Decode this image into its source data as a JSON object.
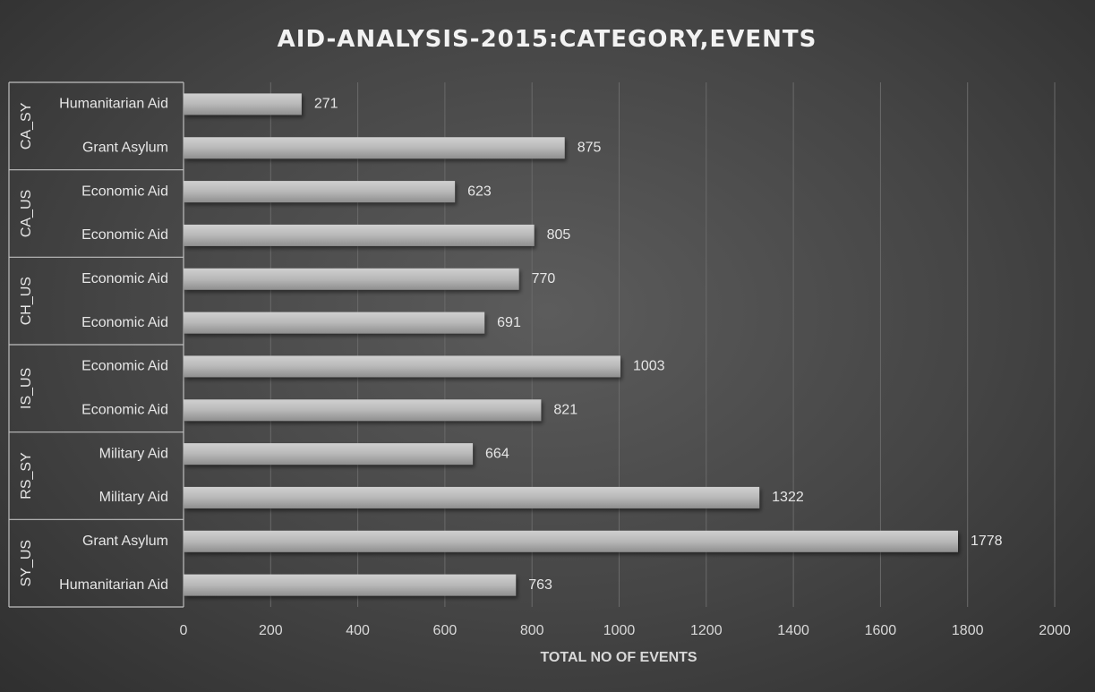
{
  "chart_data": {
    "type": "bar",
    "orientation": "horizontal",
    "title": "AID-ANALYSIS-2015:CATEGORY,EVENTS",
    "xlabel": "TOTAL NO OF EVENTS",
    "ylabel": "",
    "xlim": [
      0,
      2000
    ],
    "xticks": [
      0,
      200,
      400,
      600,
      800,
      1000,
      1200,
      1400,
      1600,
      1800,
      2000
    ],
    "grid": true,
    "legend": "none",
    "bar_color": "#b3b3b3",
    "groups": [
      {
        "name": "CA_SY",
        "items": [
          {
            "category": "Humanitarian Aid",
            "value": 271
          },
          {
            "category": "Grant Asylum",
            "value": 875
          }
        ]
      },
      {
        "name": "CA_US",
        "items": [
          {
            "category": "Economic Aid",
            "value": 623
          },
          {
            "category": "Economic Aid",
            "value": 805
          }
        ]
      },
      {
        "name": "CH_US",
        "items": [
          {
            "category": "Economic Aid",
            "value": 770
          },
          {
            "category": "Economic Aid",
            "value": 691
          }
        ]
      },
      {
        "name": "IS_US",
        "items": [
          {
            "category": "Economic Aid",
            "value": 1003
          },
          {
            "category": "Economic Aid",
            "value": 821
          }
        ]
      },
      {
        "name": "RS_SY",
        "items": [
          {
            "category": "Military Aid",
            "value": 664
          },
          {
            "category": "Military Aid",
            "value": 1322
          }
        ]
      },
      {
        "name": "SY_US",
        "items": [
          {
            "category": "Grant Asylum",
            "value": 1778
          },
          {
            "category": "Humanitarian Aid",
            "value": 763
          }
        ]
      }
    ]
  }
}
